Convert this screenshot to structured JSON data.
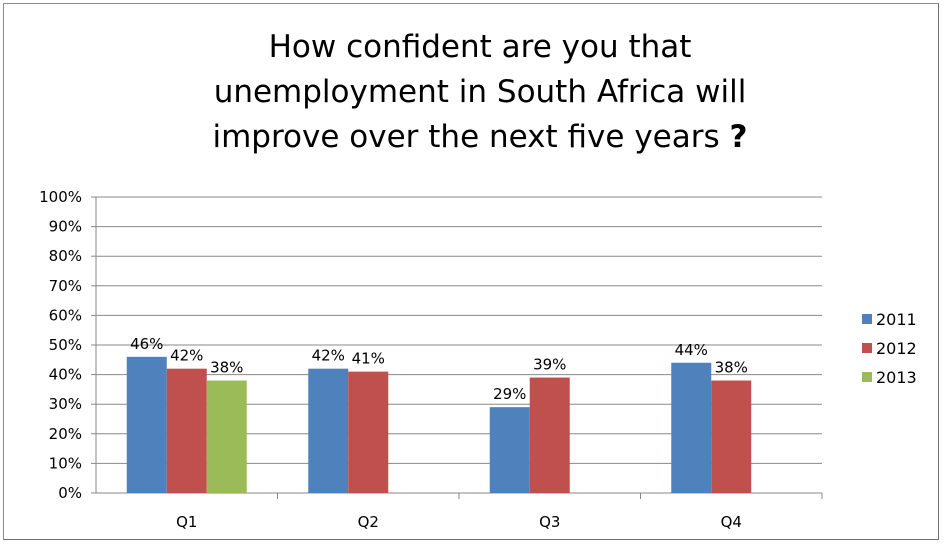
{
  "chart_data": {
    "type": "bar",
    "title_lines": [
      "How confident are you that",
      "unemployment in South Africa will",
      "improve over the next five years"
    ],
    "title_suffix": "?",
    "categories": [
      "Q1",
      "Q2",
      "Q3",
      "Q4"
    ],
    "series": [
      {
        "name": "2011",
        "color": "#4f81bd",
        "values": [
          46,
          42,
          29,
          44
        ],
        "labels": [
          "46%",
          "42%",
          "29%",
          "44%"
        ]
      },
      {
        "name": "2012",
        "color": "#c0504d",
        "values": [
          42,
          41,
          39,
          38
        ],
        "labels": [
          "42%",
          "41%",
          "39%",
          "38%"
        ]
      },
      {
        "name": "2013",
        "color": "#9bbb59",
        "values": [
          38,
          null,
          null,
          null
        ],
        "labels": [
          "38%",
          "",
          "",
          ""
        ]
      }
    ],
    "ylim": [
      0,
      100
    ],
    "yticks": [
      "0%",
      "10%",
      "20%",
      "30%",
      "40%",
      "50%",
      "60%",
      "70%",
      "80%",
      "90%",
      "100%"
    ],
    "grid": true,
    "legend_position": "right"
  }
}
